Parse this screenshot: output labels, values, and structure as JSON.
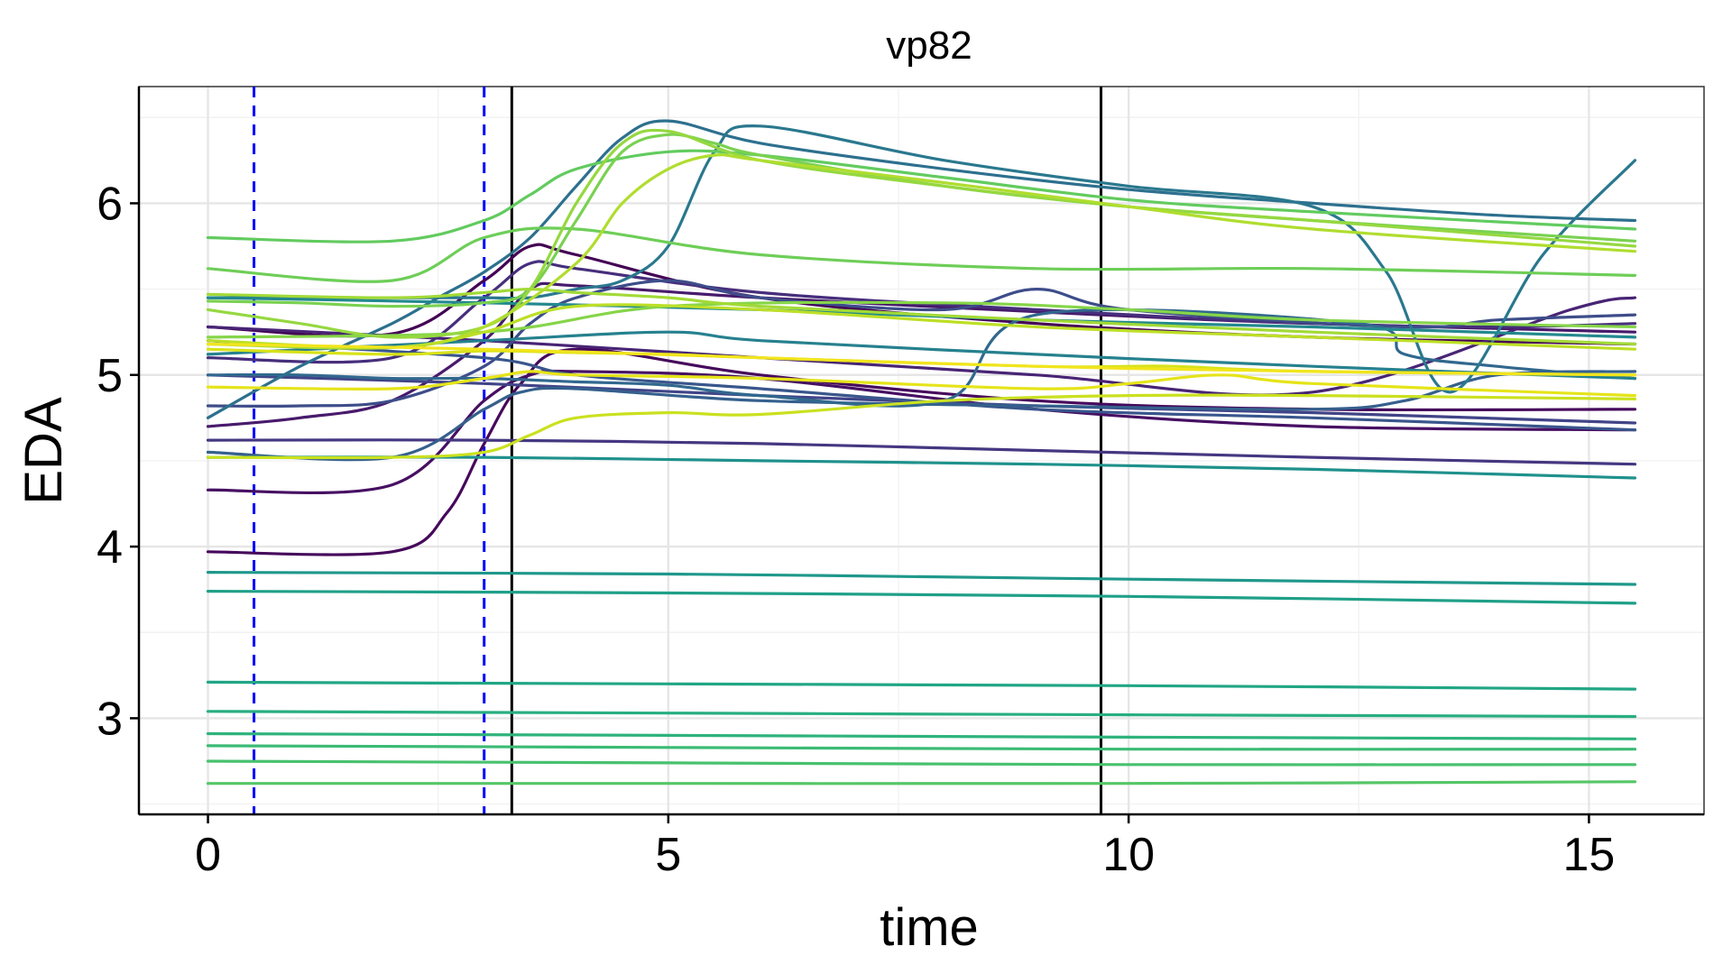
{
  "chart_data": {
    "type": "line",
    "title": "vp82",
    "xlabel": "time",
    "ylabel": "EDA",
    "xlim": [
      -0.75,
      16.25
    ],
    "ylim": [
      2.44,
      6.68
    ],
    "x_ticks": [
      0,
      5,
      10,
      15
    ],
    "y_ticks": [
      3,
      4,
      5,
      6
    ],
    "grid": true,
    "legend": "none",
    "vlines": [
      {
        "x": 0.5,
        "style": "dashed",
        "color": "#0000ff"
      },
      {
        "x": 3.0,
        "style": "dashed",
        "color": "#0000ff"
      },
      {
        "x": 3.3,
        "style": "solid",
        "color": "#000000"
      },
      {
        "x": 9.7,
        "style": "solid",
        "color": "#000000"
      }
    ],
    "series": [
      {
        "color": "#440154",
        "x": [
          0,
          2,
          3,
          3.5,
          4,
          6,
          9,
          12,
          15.5
        ],
        "y": [
          5.28,
          5.24,
          5.55,
          5.75,
          5.7,
          5.45,
          5.3,
          5.22,
          5.18
        ]
      },
      {
        "color": "#46085c",
        "x": [
          0,
          2,
          2.6,
          3,
          3.4,
          4,
          6,
          9,
          12,
          15.5
        ],
        "y": [
          3.97,
          3.97,
          4.2,
          4.6,
          4.95,
          5.15,
          5.0,
          4.85,
          4.8,
          4.8
        ]
      },
      {
        "color": "#471063",
        "x": [
          0,
          2,
          3,
          3.5,
          4,
          6,
          9,
          12,
          15.5
        ],
        "y": [
          4.33,
          4.36,
          4.85,
          5.0,
          5.02,
          4.98,
          4.8,
          4.7,
          4.68
        ]
      },
      {
        "color": "#481a6c",
        "x": [
          0,
          1,
          2,
          3,
          3.5,
          4,
          6,
          9.7,
          12,
          15.5
        ],
        "y": [
          4.7,
          4.75,
          4.85,
          5.2,
          5.5,
          5.52,
          5.45,
          5.35,
          5.3,
          5.25
        ]
      },
      {
        "color": "#482475",
        "x": [
          0,
          3,
          6,
          9,
          12,
          14.8,
          15.5
        ],
        "y": [
          5.28,
          5.2,
          5.1,
          5.0,
          4.9,
          5.38,
          5.45
        ]
      },
      {
        "color": "#472e7c",
        "x": [
          0,
          2,
          3,
          3.5,
          4,
          6,
          9,
          12,
          14,
          15.5
        ],
        "y": [
          5.1,
          5.1,
          5.45,
          5.65,
          5.62,
          5.48,
          5.38,
          5.3,
          5.28,
          5.3
        ]
      },
      {
        "color": "#453781",
        "x": [
          0,
          3,
          6,
          9,
          12,
          15.5
        ],
        "y": [
          4.62,
          4.62,
          4.6,
          4.56,
          4.52,
          4.48
        ]
      },
      {
        "color": "#414487",
        "x": [
          0,
          3,
          6,
          9,
          12,
          15.5
        ],
        "y": [
          5.0,
          4.95,
          4.88,
          4.82,
          4.78,
          4.72
        ]
      },
      {
        "color": "#3d4d8a",
        "x": [
          0,
          1,
          2,
          3,
          3.5,
          4,
          5,
          6,
          8,
          9,
          10,
          13,
          14,
          15.5
        ],
        "y": [
          4.82,
          4.82,
          4.85,
          5.05,
          5.3,
          5.45,
          5.55,
          5.45,
          5.38,
          5.5,
          5.38,
          5.28,
          5.32,
          5.35
        ]
      },
      {
        "color": "#39568c",
        "x": [
          0,
          3,
          4,
          6,
          9,
          12,
          15.5
        ],
        "y": [
          5.2,
          5.1,
          5.0,
          4.92,
          4.8,
          4.75,
          4.68
        ]
      },
      {
        "color": "#35608d",
        "x": [
          0,
          2,
          3,
          3.4,
          4,
          6,
          9,
          12,
          13,
          14,
          15.5
        ],
        "y": [
          4.55,
          4.52,
          4.8,
          4.9,
          4.92,
          4.85,
          4.82,
          4.8,
          4.85,
          5.0,
          5.02
        ]
      },
      {
        "color": "#31688e",
        "x": [
          0,
          1,
          2,
          3,
          4,
          5,
          6,
          8,
          9,
          12.5,
          13,
          14,
          15.5
        ],
        "y": [
          5.0,
          5.0,
          4.98,
          4.98,
          4.96,
          4.94,
          4.88,
          4.85,
          5.35,
          5.3,
          5.12,
          5.05,
          4.98
        ]
      },
      {
        "color": "#2d708e",
        "x": [
          0,
          1,
          2,
          2.5,
          3,
          3.5,
          4,
          4.5,
          5,
          6,
          8,
          10,
          12,
          14,
          15.5
        ],
        "y": [
          4.75,
          5.05,
          5.3,
          5.45,
          5.6,
          5.8,
          6.1,
          6.38,
          6.48,
          6.35,
          6.2,
          6.08,
          6.0,
          5.93,
          5.9
        ]
      },
      {
        "color": "#2a788e",
        "x": [
          0,
          2,
          3,
          3.5,
          4,
          4.5,
          5,
          5.5,
          6,
          8,
          10,
          12,
          12.8,
          13.5,
          14.5,
          15.5
        ],
        "y": [
          5.45,
          5.45,
          5.45,
          5.45,
          5.5,
          5.55,
          5.75,
          6.3,
          6.45,
          6.25,
          6.1,
          5.98,
          5.6,
          4.9,
          5.7,
          6.25
        ]
      },
      {
        "color": "#26818e",
        "x": [
          0,
          3,
          5,
          6,
          9,
          12,
          15.5
        ],
        "y": [
          5.12,
          5.2,
          5.25,
          5.2,
          5.12,
          5.05,
          4.98
        ]
      },
      {
        "color": "#23898e",
        "x": [
          0,
          3,
          6,
          9,
          12,
          15.5
        ],
        "y": [
          5.45,
          5.42,
          5.38,
          5.32,
          5.28,
          5.22
        ]
      },
      {
        "color": "#1f918c",
        "x": [
          0,
          3,
          6,
          9,
          12,
          15.5
        ],
        "y": [
          4.52,
          4.52,
          4.5,
          4.48,
          4.45,
          4.4
        ]
      },
      {
        "color": "#1f988b",
        "x": [
          0,
          5,
          10,
          15.5
        ],
        "y": [
          3.85,
          3.84,
          3.81,
          3.78
        ]
      },
      {
        "color": "#1fa088",
        "x": [
          0,
          5,
          10,
          15.5
        ],
        "y": [
          3.74,
          3.73,
          3.71,
          3.67
        ]
      },
      {
        "color": "#21a685",
        "x": [
          0,
          5,
          10,
          15.5
        ],
        "y": [
          3.21,
          3.2,
          3.19,
          3.17
        ]
      },
      {
        "color": "#28ae80",
        "x": [
          0,
          5,
          10,
          15.5
        ],
        "y": [
          3.04,
          3.03,
          3.02,
          3.01
        ]
      },
      {
        "color": "#2eb37c",
        "x": [
          0,
          5,
          10,
          15.5
        ],
        "y": [
          2.91,
          2.9,
          2.89,
          2.88
        ]
      },
      {
        "color": "#3bbb75",
        "x": [
          0,
          5,
          10,
          15.5
        ],
        "y": [
          2.84,
          2.83,
          2.82,
          2.82
        ]
      },
      {
        "color": "#48c16e",
        "x": [
          0,
          5,
          10,
          15.5
        ],
        "y": [
          2.75,
          2.74,
          2.73,
          2.73
        ]
      },
      {
        "color": "#56c667",
        "x": [
          0,
          5,
          10,
          15.5
        ],
        "y": [
          2.62,
          2.62,
          2.62,
          2.63
        ]
      },
      {
        "color": "#62cb5f",
        "x": [
          0,
          2,
          3,
          3.5,
          4,
          5,
          6,
          8,
          10,
          12,
          15.5
        ],
        "y": [
          5.8,
          5.78,
          5.9,
          6.05,
          6.2,
          6.3,
          6.28,
          6.15,
          6.02,
          5.95,
          5.85
        ]
      },
      {
        "color": "#6ece58",
        "x": [
          0,
          2,
          3,
          4,
          6,
          9,
          12,
          15.5
        ],
        "y": [
          5.62,
          5.55,
          5.8,
          5.85,
          5.7,
          5.62,
          5.62,
          5.58
        ]
      },
      {
        "color": "#7ad151",
        "x": [
          0,
          1,
          2,
          3,
          3.5,
          4,
          4.5,
          5,
          5.5,
          6,
          8,
          10,
          12,
          15.5
        ],
        "y": [
          5.43,
          5.42,
          5.4,
          5.42,
          5.5,
          5.9,
          6.3,
          6.4,
          6.35,
          6.28,
          6.1,
          5.98,
          5.9,
          5.78
        ]
      },
      {
        "color": "#86d549",
        "x": [
          0,
          3,
          5,
          8,
          10,
          12,
          15.5
        ],
        "y": [
          5.22,
          5.25,
          5.4,
          5.42,
          5.38,
          5.32,
          5.28
        ]
      },
      {
        "color": "#95d840",
        "x": [
          0,
          1,
          2,
          3,
          3.5,
          4,
          4.5,
          5,
          6,
          8,
          10,
          12,
          15.5
        ],
        "y": [
          5.38,
          5.3,
          5.22,
          5.28,
          5.5,
          6.0,
          6.35,
          6.42,
          6.25,
          6.1,
          5.98,
          5.9,
          5.75
        ]
      },
      {
        "color": "#a2da37",
        "x": [
          0,
          2,
          3,
          3.5,
          4,
          5,
          6,
          9,
          12,
          15.5
        ],
        "y": [
          5.47,
          5.45,
          5.48,
          5.5,
          5.48,
          5.45,
          5.4,
          5.32,
          5.25,
          5.18
        ]
      },
      {
        "color": "#b0dd2f",
        "x": [
          0,
          2,
          3,
          4,
          4.5,
          5,
          5.5,
          6,
          8,
          10,
          12,
          15.5
        ],
        "y": [
          5.18,
          5.16,
          5.28,
          5.65,
          6.0,
          6.2,
          6.28,
          6.25,
          6.12,
          5.98,
          5.85,
          5.72
        ]
      },
      {
        "color": "#bddf26",
        "x": [
          0,
          2,
          3,
          4,
          6,
          9,
          12,
          15.5
        ],
        "y": [
          5.2,
          5.16,
          5.25,
          5.4,
          5.38,
          5.28,
          5.22,
          5.15
        ]
      },
      {
        "color": "#cae11f",
        "x": [
          0,
          2,
          3,
          3.5,
          4,
          5,
          6,
          8,
          10,
          12,
          15.5
        ],
        "y": [
          4.52,
          4.52,
          4.55,
          4.65,
          4.75,
          4.78,
          4.77,
          4.85,
          4.88,
          4.88,
          4.86
        ]
      },
      {
        "color": "#d8e219",
        "x": [
          0,
          2,
          3,
          4,
          5,
          6,
          9,
          10,
          10.5,
          12,
          15.5
        ],
        "y": [
          5.15,
          5.12,
          5.14,
          5.13,
          5.12,
          5.1,
          5.05,
          5.05,
          5.05,
          5.02,
          5.0
        ]
      },
      {
        "color": "#e5e419",
        "x": [
          0,
          2,
          3,
          3.5,
          4,
          6,
          9,
          10,
          11,
          12,
          15.5
        ],
        "y": [
          4.93,
          4.92,
          4.98,
          5.02,
          5.0,
          4.98,
          4.92,
          4.95,
          5.0,
          4.95,
          4.88
        ]
      },
      {
        "color": "#f1e51d",
        "x": [
          0,
          3,
          6,
          9,
          12,
          15.5
        ],
        "y": [
          5.18,
          5.15,
          5.1,
          5.05,
          5.02,
          5.0
        ]
      }
    ]
  }
}
